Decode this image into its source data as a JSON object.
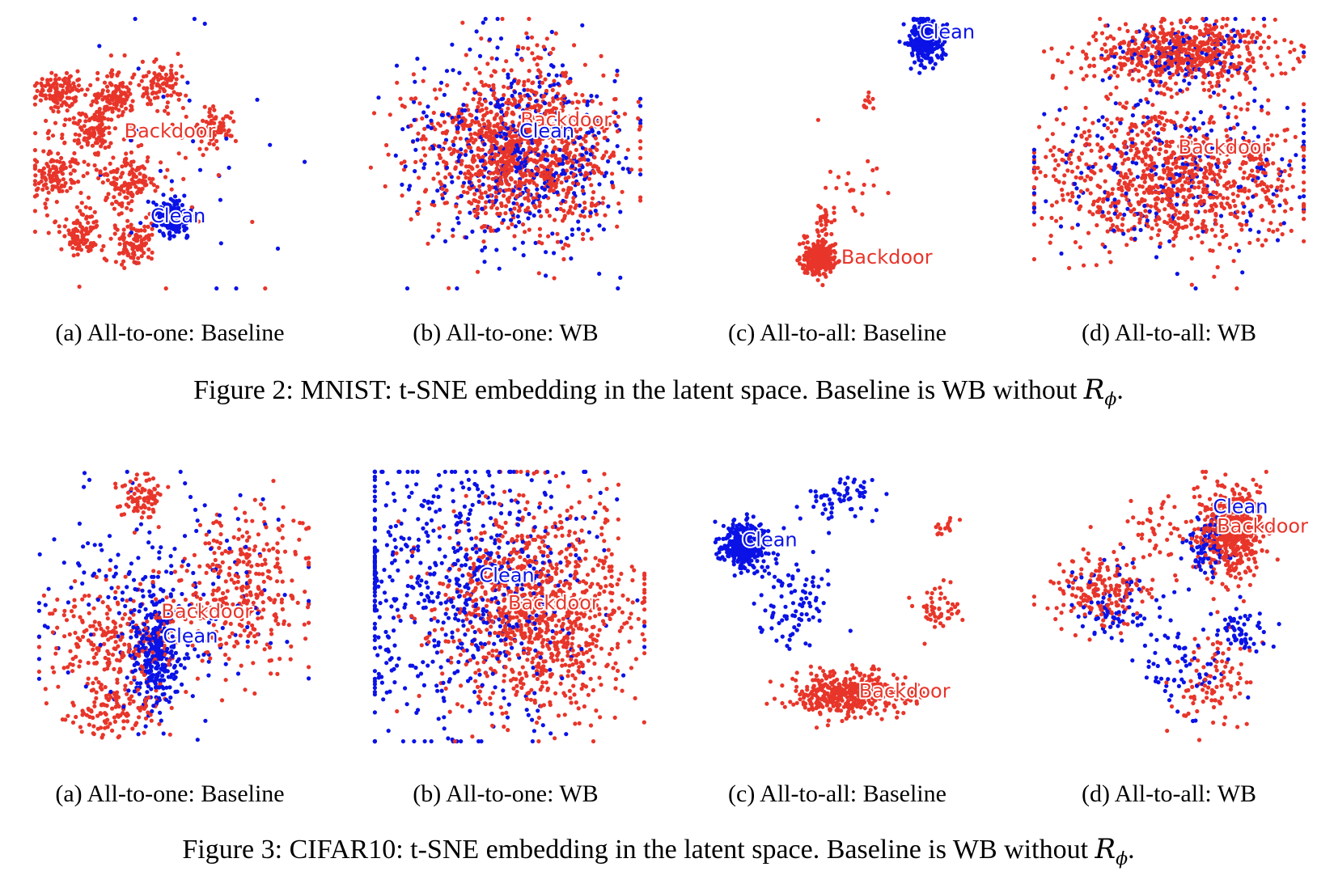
{
  "figures": [
    {
      "caption_parts": [
        "Figure 2: MNIST: t-SNE embedding in the latent space. Baseline is WB without ",
        "R",
        "ϕ",
        "."
      ],
      "subfigures": [
        {
          "caption": "(a) All-to-one: Baseline"
        },
        {
          "caption": "(b) All-to-one: WB"
        },
        {
          "caption": "(c) All-to-all: Baseline"
        },
        {
          "caption": "(d) All-to-all: WB"
        }
      ]
    },
    {
      "caption_parts": [
        "Figure 3: CIFAR10: t-SNE embedding in the latent space. Baseline is WB without ",
        "R",
        "ϕ",
        "."
      ],
      "subfigures": [
        {
          "caption": "(a) All-to-one: Baseline"
        },
        {
          "caption": "(b) All-to-one: WB"
        },
        {
          "caption": "(c) All-to-all: Baseline"
        },
        {
          "caption": "(d) All-to-all: WB"
        }
      ]
    }
  ],
  "colors": {
    "clean": "#0a12e6",
    "backdoor": "#e8352a"
  },
  "chart_data": [
    {
      "type": "scatter",
      "axes": "hidden",
      "xlim": [
        0,
        100
      ],
      "ylim": [
        0,
        100
      ],
      "series": [
        {
          "name": "Clean",
          "color": "#0a12e6"
        },
        {
          "name": "Backdoor",
          "color": "#e8352a"
        }
      ],
      "annotations": [
        {
          "text": "Backdoor",
          "x": 50,
          "y": 42,
          "color": "#e8352a"
        },
        {
          "text": "Clean",
          "x": 53,
          "y": 73,
          "color": "#0a12e6"
        }
      ],
      "clusters": [
        {
          "series": "Backdoor",
          "x": 10,
          "y": 28,
          "sx": 4,
          "sy": 4,
          "n": 120
        },
        {
          "series": "Backdoor",
          "x": 30,
          "y": 30,
          "sx": 4,
          "sy": 4,
          "n": 110
        },
        {
          "series": "Backdoor",
          "x": 48,
          "y": 25,
          "sx": 4,
          "sy": 4,
          "n": 90
        },
        {
          "series": "Backdoor",
          "x": 66,
          "y": 40,
          "sx": 4,
          "sy": 3,
          "n": 70
        },
        {
          "series": "Backdoor",
          "x": 22,
          "y": 42,
          "sx": 4,
          "sy": 4,
          "n": 100
        },
        {
          "series": "Backdoor",
          "x": 8,
          "y": 58,
          "sx": 4,
          "sy": 5,
          "n": 110
        },
        {
          "series": "Backdoor",
          "x": 35,
          "y": 60,
          "sx": 5,
          "sy": 5,
          "n": 120
        },
        {
          "series": "Backdoor",
          "x": 17,
          "y": 80,
          "sx": 4,
          "sy": 4,
          "n": 100
        },
        {
          "series": "Backdoor",
          "x": 37,
          "y": 83,
          "sx": 4,
          "sy": 4,
          "n": 100
        },
        {
          "series": "Backdoor",
          "x": 30,
          "y": 55,
          "sx": 22,
          "sy": 20,
          "n": 90
        },
        {
          "series": "Clean",
          "x": 51,
          "y": 73,
          "sx": 3,
          "sy": 3,
          "n": 220
        },
        {
          "series": "Clean",
          "x": 55,
          "y": 45,
          "sx": 20,
          "sy": 30,
          "n": 30
        }
      ]
    },
    {
      "type": "scatter",
      "axes": "hidden",
      "xlim": [
        0,
        100
      ],
      "ylim": [
        0,
        100
      ],
      "series": [
        {
          "name": "Clean",
          "color": "#0a12e6"
        },
        {
          "name": "Backdoor",
          "color": "#e8352a"
        }
      ],
      "annotations": [
        {
          "text": "Backdoor",
          "x": 72,
          "y": 38,
          "color": "#e8352a"
        },
        {
          "text": "Clean",
          "x": 65,
          "y": 42,
          "color": "#0a12e6"
        }
      ],
      "clusters": [
        {
          "series": "Clean",
          "x": 55,
          "y": 50,
          "sx": 20,
          "sy": 18,
          "n": 480
        },
        {
          "series": "Backdoor",
          "x": 55,
          "y": 48,
          "sx": 17,
          "sy": 15,
          "n": 1100
        }
      ]
    },
    {
      "type": "scatter",
      "axes": "hidden",
      "xlim": [
        0,
        100
      ],
      "ylim": [
        0,
        100
      ],
      "series": [
        {
          "name": "Clean",
          "color": "#0a12e6"
        },
        {
          "name": "Backdoor",
          "color": "#e8352a"
        }
      ],
      "annotations": [
        {
          "text": "Clean",
          "x": 90,
          "y": 6,
          "color": "#0a12e6"
        },
        {
          "text": "Backdoor",
          "x": 68,
          "y": 88,
          "color": "#e8352a"
        }
      ],
      "clusters": [
        {
          "series": "Clean",
          "x": 82,
          "y": 9,
          "sx": 3,
          "sy": 4,
          "n": 260
        },
        {
          "series": "Backdoor",
          "x": 43,
          "y": 88,
          "sx": 3,
          "sy": 3,
          "n": 260
        },
        {
          "series": "Backdoor",
          "x": 45,
          "y": 75,
          "sx": 2,
          "sy": 5,
          "n": 35
        },
        {
          "series": "Backdoor",
          "x": 55,
          "y": 58,
          "sx": 6,
          "sy": 8,
          "n": 18
        },
        {
          "series": "Backdoor",
          "x": 61,
          "y": 30,
          "sx": 2,
          "sy": 2,
          "n": 10
        }
      ]
    },
    {
      "type": "scatter",
      "axes": "hidden",
      "xlim": [
        0,
        100
      ],
      "ylim": [
        0,
        100
      ],
      "series": [
        {
          "name": "Clean",
          "color": "#0a12e6"
        },
        {
          "name": "Backdoor",
          "color": "#e8352a"
        }
      ],
      "annotations": [
        {
          "text": "Backdoor",
          "x": 70,
          "y": 48,
          "color": "#e8352a"
        }
      ],
      "clusters": [
        {
          "series": "Backdoor",
          "x": 55,
          "y": 14,
          "sx": 17,
          "sy": 6,
          "n": 600
        },
        {
          "series": "Backdoor",
          "x": 52,
          "y": 58,
          "sx": 23,
          "sy": 13,
          "n": 900
        },
        {
          "series": "Clean",
          "x": 55,
          "y": 14,
          "sx": 15,
          "sy": 6,
          "n": 110
        },
        {
          "series": "Clean",
          "x": 55,
          "y": 55,
          "sx": 25,
          "sy": 15,
          "n": 250
        }
      ]
    },
    {
      "type": "scatter",
      "axes": "hidden",
      "xlim": [
        0,
        100
      ],
      "ylim": [
        0,
        100
      ],
      "series": [
        {
          "name": "Clean",
          "color": "#0a12e6"
        },
        {
          "name": "Backdoor",
          "color": "#e8352a"
        }
      ],
      "annotations": [
        {
          "text": "Backdoor",
          "x": 62,
          "y": 52,
          "color": "#e8352a"
        },
        {
          "text": "Clean",
          "x": 56,
          "y": 61,
          "color": "#0a12e6"
        }
      ],
      "clusters": [
        {
          "series": "Backdoor",
          "x": 38,
          "y": 10,
          "sx": 4,
          "sy": 4,
          "n": 80
        },
        {
          "series": "Backdoor",
          "x": 75,
          "y": 45,
          "sx": 12,
          "sy": 14,
          "n": 320
        },
        {
          "series": "Backdoor",
          "x": 30,
          "y": 62,
          "sx": 14,
          "sy": 10,
          "n": 250
        },
        {
          "series": "Backdoor",
          "x": 28,
          "y": 88,
          "sx": 8,
          "sy": 5,
          "n": 120
        },
        {
          "series": "Clean",
          "x": 43,
          "y": 68,
          "sx": 4,
          "sy": 10,
          "n": 300
        },
        {
          "series": "Clean",
          "x": 45,
          "y": 42,
          "sx": 22,
          "sy": 20,
          "n": 200
        }
      ]
    },
    {
      "type": "scatter",
      "axes": "hidden",
      "xlim": [
        0,
        100
      ],
      "ylim": [
        0,
        100
      ],
      "series": [
        {
          "name": "Clean",
          "color": "#0a12e6"
        },
        {
          "name": "Backdoor",
          "color": "#e8352a"
        }
      ],
      "annotations": [
        {
          "text": "Clean",
          "x": 49,
          "y": 39,
          "color": "#0a12e6"
        },
        {
          "text": "Backdoor",
          "x": 66,
          "y": 49,
          "color": "#e8352a"
        }
      ],
      "clusters": [
        {
          "series": "Clean",
          "x": 30,
          "y": 45,
          "sx": 24,
          "sy": 26,
          "n": 650
        },
        {
          "series": "Backdoor",
          "x": 60,
          "y": 52,
          "sx": 18,
          "sy": 18,
          "n": 1000
        }
      ]
    },
    {
      "type": "scatter",
      "axes": "hidden",
      "xlim": [
        0,
        100
      ],
      "ylim": [
        0,
        100
      ],
      "series": [
        {
          "name": "Clean",
          "color": "#0a12e6"
        },
        {
          "name": "Backdoor",
          "color": "#e8352a"
        }
      ],
      "annotations": [
        {
          "text": "Clean",
          "x": 24,
          "y": 26,
          "color": "#0a12e6"
        },
        {
          "text": "Backdoor",
          "x": 73,
          "y": 81,
          "color": "#e8352a"
        }
      ],
      "clusters": [
        {
          "series": "Clean",
          "x": 14,
          "y": 28,
          "sx": 4,
          "sy": 4,
          "n": 320
        },
        {
          "series": "Clean",
          "x": 50,
          "y": 10,
          "sx": 8,
          "sy": 4,
          "n": 60
        },
        {
          "series": "Clean",
          "x": 33,
          "y": 48,
          "sx": 8,
          "sy": 10,
          "n": 90
        },
        {
          "series": "Backdoor",
          "x": 52,
          "y": 82,
          "sx": 10,
          "sy": 4,
          "n": 420
        },
        {
          "series": "Backdoor",
          "x": 85,
          "y": 50,
          "sx": 4,
          "sy": 5,
          "n": 50
        },
        {
          "series": "Backdoor",
          "x": 88,
          "y": 22,
          "sx": 2,
          "sy": 2,
          "n": 15
        }
      ]
    },
    {
      "type": "scatter",
      "axes": "hidden",
      "xlim": [
        0,
        100
      ],
      "ylim": [
        0,
        100
      ],
      "series": [
        {
          "name": "Clean",
          "color": "#0a12e6"
        },
        {
          "name": "Backdoor",
          "color": "#e8352a"
        }
      ],
      "annotations": [
        {
          "text": "Clean",
          "x": 76,
          "y": 14,
          "color": "#0a12e6"
        },
        {
          "text": "Backdoor",
          "x": 84,
          "y": 21,
          "color": "#e8352a"
        }
      ],
      "clusters": [
        {
          "series": "Backdoor",
          "x": 73,
          "y": 22,
          "sx": 6,
          "sy": 8,
          "n": 500
        },
        {
          "series": "Clean",
          "x": 64,
          "y": 28,
          "sx": 4,
          "sy": 5,
          "n": 80
        },
        {
          "series": "Backdoor",
          "x": 25,
          "y": 45,
          "sx": 9,
          "sy": 7,
          "n": 180
        },
        {
          "series": "Clean",
          "x": 32,
          "y": 50,
          "sx": 9,
          "sy": 7,
          "n": 80
        },
        {
          "series": "Clean",
          "x": 75,
          "y": 58,
          "sx": 6,
          "sy": 5,
          "n": 60
        },
        {
          "series": "Backdoor",
          "x": 65,
          "y": 78,
          "sx": 8,
          "sy": 9,
          "n": 90
        },
        {
          "series": "Clean",
          "x": 55,
          "y": 72,
          "sx": 9,
          "sy": 8,
          "n": 60
        },
        {
          "series": "Backdoor",
          "x": 46,
          "y": 20,
          "sx": 5,
          "sy": 6,
          "n": 40
        }
      ]
    }
  ]
}
